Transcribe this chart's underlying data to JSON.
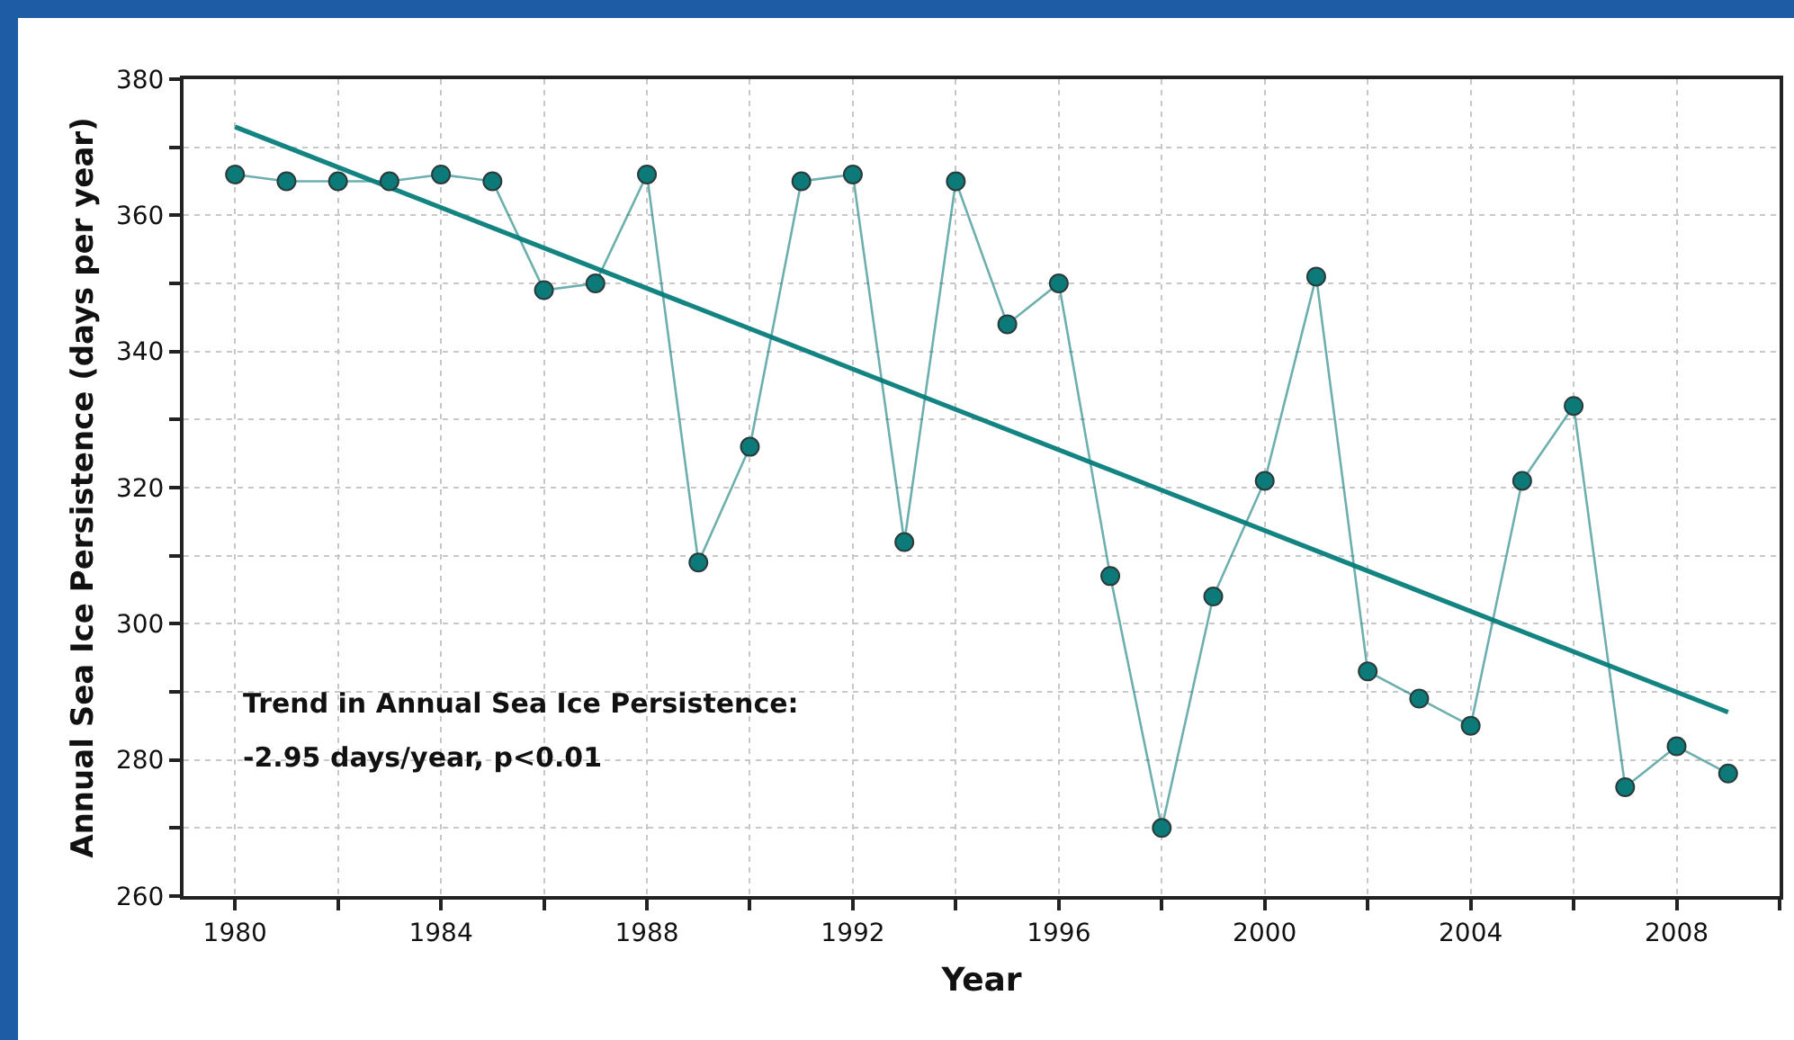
{
  "chart_data": {
    "type": "line",
    "xlabel": "Year",
    "ylabel": "Annual Sea Ice Persistence (days per year)",
    "x": [
      1980,
      1981,
      1982,
      1983,
      1984,
      1985,
      1986,
      1987,
      1988,
      1989,
      1990,
      1991,
      1992,
      1993,
      1994,
      1995,
      1996,
      1997,
      1998,
      1999,
      2000,
      2001,
      2002,
      2003,
      2004,
      2005,
      2006,
      2007,
      2008,
      2009
    ],
    "series": [
      {
        "color": "#0b7a78",
        "marker": "circle",
        "values": [
          366,
          365,
          365,
          365,
          366,
          365,
          349,
          350,
          366,
          309,
          326,
          365,
          366,
          312,
          365,
          344,
          350,
          307,
          270,
          304,
          321,
          351,
          293,
          289,
          285,
          321,
          332,
          276,
          282,
          278
        ]
      },
      {
        "type": "line",
        "color": "#138482",
        "marker": "none",
        "x": [
          1980,
          2009
        ],
        "values": [
          373,
          287
        ]
      }
    ],
    "xlim": [
      1979,
      2010
    ],
    "ylim": [
      260,
      380
    ],
    "xticks": [
      1980,
      {
        "value": 1982,
        "label": null
      },
      1984,
      {
        "value": 1986,
        "label": null
      },
      1988,
      {
        "value": 1990,
        "label": null
      },
      1992,
      {
        "value": 1994,
        "label": null
      },
      1996,
      {
        "value": 1998,
        "label": null
      },
      2000,
      {
        "value": 2002,
        "label": null
      },
      2004,
      {
        "value": 2006,
        "label": null
      },
      2008,
      {
        "value": 2010,
        "label": null
      }
    ],
    "yticks": [
      260,
      {
        "value": 270,
        "label": null
      },
      280,
      {
        "value": 290,
        "label": null
      },
      300,
      {
        "value": 310,
        "label": null
      },
      320,
      {
        "value": 330,
        "label": null
      },
      340,
      {
        "value": 350,
        "label": null
      },
      360,
      {
        "value": 370,
        "label": null
      },
      380
    ],
    "grid": true,
    "annotations": [
      "Trend in Annual Sea Ice Persistence:",
      "-2.95 days/year, p<0.01"
    ]
  }
}
